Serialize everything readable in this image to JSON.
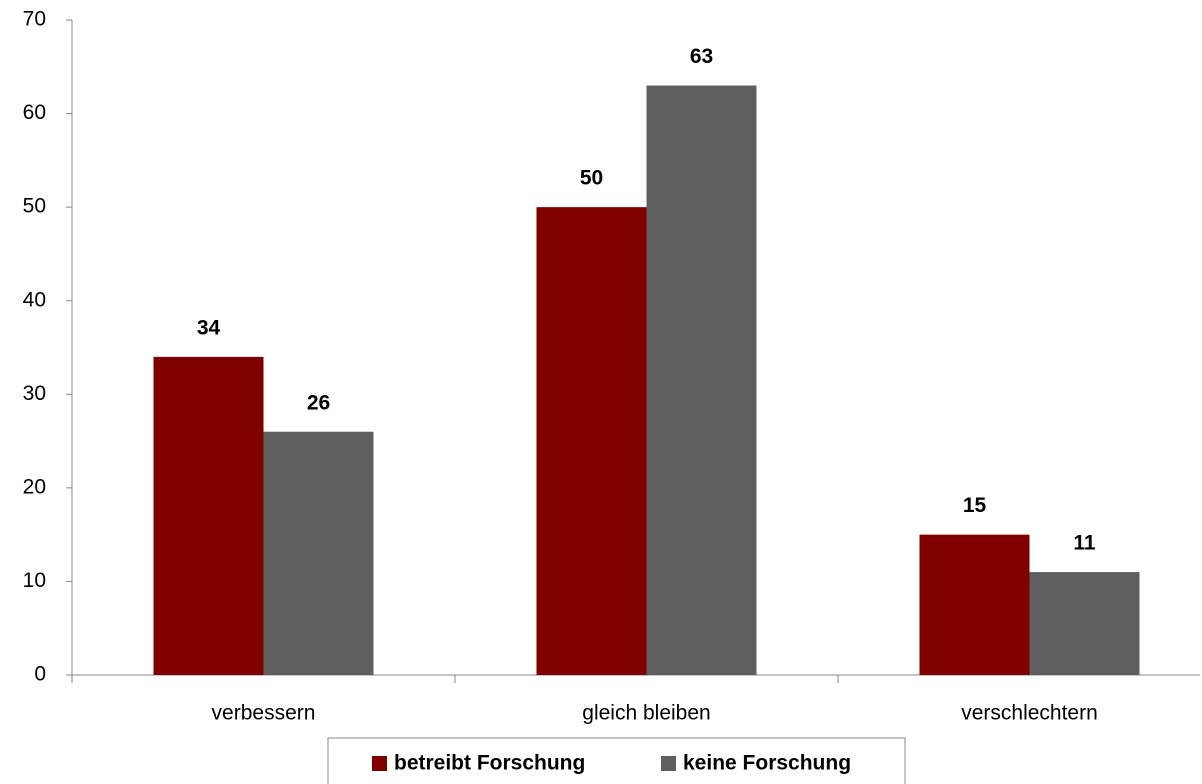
{
  "chart_data": {
    "type": "bar",
    "categories": [
      "verbessern",
      "gleich bleiben",
      "verschlechtern"
    ],
    "series": [
      {
        "name": "betreibt Forschung",
        "color": "#800000",
        "values": [
          34,
          50,
          15
        ]
      },
      {
        "name": "keine Forschung",
        "color": "#5f5f5f",
        "values": [
          26,
          63,
          11
        ]
      }
    ],
    "ylim": [
      0,
      70
    ],
    "yticks": [
      0,
      10,
      20,
      30,
      40,
      50,
      60,
      70
    ],
    "grid": false,
    "legend": "bottom"
  }
}
